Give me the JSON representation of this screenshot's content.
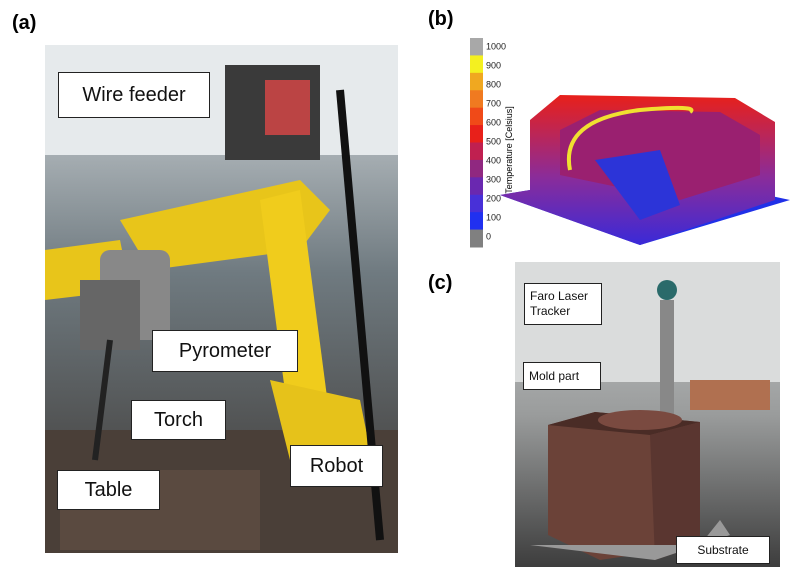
{
  "panels": {
    "a": {
      "label": "(a)",
      "callouts": [
        "Wire feeder",
        "Pyrometer",
        "Torch",
        "Table",
        "Robot"
      ]
    },
    "b": {
      "label": "(b)",
      "colorbar": {
        "title": "Temperature [Celsius]",
        "ticks": [
          1000,
          900,
          800,
          700,
          600,
          500,
          400,
          300,
          200,
          100,
          0
        ]
      }
    },
    "c": {
      "label": "(c)",
      "callouts": [
        "Faro Laser Tracker",
        "Mold part",
        "Substrate"
      ]
    }
  }
}
